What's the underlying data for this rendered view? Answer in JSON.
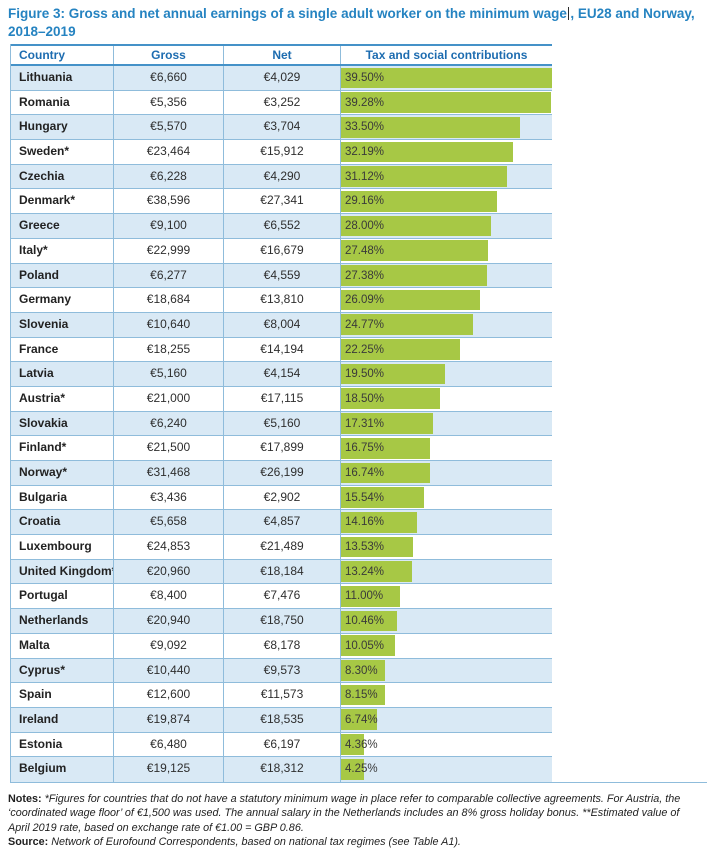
{
  "figure": {
    "title_part1": "Figure 3: Gross and net annual earnings of a single adult worker on the minimum wage",
    "title_part2": ", EU28 and Norway, 2018–2019",
    "accent_blue": "#2583c1",
    "header_blue": "#1d6cb0",
    "grid_blue": "#8fbcdb",
    "alt_row_blue": "#d9e9f5",
    "bar_green": "#a7c845"
  },
  "table": {
    "headers": {
      "country": "Country",
      "gross": "Gross",
      "net": "Net",
      "tax": "Tax and social contributions"
    }
  },
  "chart_data": {
    "type": "table",
    "title": "Figure 3: Gross and net annual earnings of a single adult worker on the minimum wage, EU28 and Norway, 2018–2019",
    "columns": [
      "Country",
      "Gross",
      "Net",
      "Tax and social contributions"
    ],
    "bar_column": "Tax and social contributions",
    "bar_unit": "%",
    "bar_scale_max": 39.5,
    "currency": "EUR",
    "rows": [
      {
        "country": "Lithuania",
        "gross_eur": 6660,
        "net_eur": 4029,
        "gross_label": "€6,660",
        "net_label": "€4,029",
        "tax_pct": 39.5,
        "tax_label": "39.50%"
      },
      {
        "country": "Romania",
        "gross_eur": 5356,
        "net_eur": 3252,
        "gross_label": "€5,356",
        "net_label": "€3,252",
        "tax_pct": 39.28,
        "tax_label": "39.28%"
      },
      {
        "country": "Hungary",
        "gross_eur": 5570,
        "net_eur": 3704,
        "gross_label": "€5,570",
        "net_label": "€3,704",
        "tax_pct": 33.5,
        "tax_label": "33.50%"
      },
      {
        "country": "Sweden*",
        "gross_eur": 23464,
        "net_eur": 15912,
        "gross_label": "€23,464",
        "net_label": "€15,912",
        "tax_pct": 32.19,
        "tax_label": "32.19%"
      },
      {
        "country": "Czechia",
        "gross_eur": 6228,
        "net_eur": 4290,
        "gross_label": "€6,228",
        "net_label": "€4,290",
        "tax_pct": 31.12,
        "tax_label": "31.12%"
      },
      {
        "country": "Denmark*",
        "gross_eur": 38596,
        "net_eur": 27341,
        "gross_label": "€38,596",
        "net_label": "€27,341",
        "tax_pct": 29.16,
        "tax_label": "29.16%"
      },
      {
        "country": "Greece",
        "gross_eur": 9100,
        "net_eur": 6552,
        "gross_label": "€9,100",
        "net_label": "€6,552",
        "tax_pct": 28.0,
        "tax_label": "28.00%"
      },
      {
        "country": "Italy*",
        "gross_eur": 22999,
        "net_eur": 16679,
        "gross_label": "€22,999",
        "net_label": "€16,679",
        "tax_pct": 27.48,
        "tax_label": "27.48%"
      },
      {
        "country": "Poland",
        "gross_eur": 6277,
        "net_eur": 4559,
        "gross_label": "€6,277",
        "net_label": "€4,559",
        "tax_pct": 27.38,
        "tax_label": "27.38%"
      },
      {
        "country": "Germany",
        "gross_eur": 18684,
        "net_eur": 13810,
        "gross_label": "€18,684",
        "net_label": "€13,810",
        "tax_pct": 26.09,
        "tax_label": "26.09%"
      },
      {
        "country": "Slovenia",
        "gross_eur": 10640,
        "net_eur": 8004,
        "gross_label": "€10,640",
        "net_label": "€8,004",
        "tax_pct": 24.77,
        "tax_label": "24.77%"
      },
      {
        "country": "France",
        "gross_eur": 18255,
        "net_eur": 14194,
        "gross_label": "€18,255",
        "net_label": "€14,194",
        "tax_pct": 22.25,
        "tax_label": "22.25%"
      },
      {
        "country": "Latvia",
        "gross_eur": 5160,
        "net_eur": 4154,
        "gross_label": "€5,160",
        "net_label": "€4,154",
        "tax_pct": 19.5,
        "tax_label": "19.50%"
      },
      {
        "country": "Austria*",
        "gross_eur": 21000,
        "net_eur": 17115,
        "gross_label": "€21,000",
        "net_label": "€17,115",
        "tax_pct": 18.5,
        "tax_label": "18.50%"
      },
      {
        "country": "Slovakia",
        "gross_eur": 6240,
        "net_eur": 5160,
        "gross_label": "€6,240",
        "net_label": "€5,160",
        "tax_pct": 17.31,
        "tax_label": "17.31%"
      },
      {
        "country": "Finland*",
        "gross_eur": 21500,
        "net_eur": 17899,
        "gross_label": "€21,500",
        "net_label": "€17,899",
        "tax_pct": 16.75,
        "tax_label": "16.75%"
      },
      {
        "country": "Norway*",
        "gross_eur": 31468,
        "net_eur": 26199,
        "gross_label": "€31,468",
        "net_label": "€26,199",
        "tax_pct": 16.74,
        "tax_label": "16.74%"
      },
      {
        "country": "Bulgaria",
        "gross_eur": 3436,
        "net_eur": 2902,
        "gross_label": "€3,436",
        "net_label": "€2,902",
        "tax_pct": 15.54,
        "tax_label": "15.54%"
      },
      {
        "country": "Croatia",
        "gross_eur": 5658,
        "net_eur": 4857,
        "gross_label": "€5,658",
        "net_label": "€4,857",
        "tax_pct": 14.16,
        "tax_label": "14.16%"
      },
      {
        "country": "Luxembourg",
        "gross_eur": 24853,
        "net_eur": 21489,
        "gross_label": "€24,853",
        "net_label": "€21,489",
        "tax_pct": 13.53,
        "tax_label": "13.53%"
      },
      {
        "country": "United Kingdom**",
        "gross_eur": 20960,
        "net_eur": 18184,
        "gross_label": "€20,960",
        "net_label": "€18,184",
        "tax_pct": 13.24,
        "tax_label": "13.24%"
      },
      {
        "country": "Portugal",
        "gross_eur": 8400,
        "net_eur": 7476,
        "gross_label": "€8,400",
        "net_label": "€7,476",
        "tax_pct": 11.0,
        "tax_label": "11.00%"
      },
      {
        "country": "Netherlands",
        "gross_eur": 20940,
        "net_eur": 18750,
        "gross_label": "€20,940",
        "net_label": "€18,750",
        "tax_pct": 10.46,
        "tax_label": "10.46%"
      },
      {
        "country": "Malta",
        "gross_eur": 9092,
        "net_eur": 8178,
        "gross_label": "€9,092",
        "net_label": "€8,178",
        "tax_pct": 10.05,
        "tax_label": "10.05%"
      },
      {
        "country": "Cyprus*",
        "gross_eur": 10440,
        "net_eur": 9573,
        "gross_label": "€10,440",
        "net_label": "€9,573",
        "tax_pct": 8.3,
        "tax_label": "8.30%"
      },
      {
        "country": "Spain",
        "gross_eur": 12600,
        "net_eur": 11573,
        "gross_label": "€12,600",
        "net_label": "€11,573",
        "tax_pct": 8.15,
        "tax_label": "8.15%"
      },
      {
        "country": "Ireland",
        "gross_eur": 19874,
        "net_eur": 18535,
        "gross_label": "€19,874",
        "net_label": "€18,535",
        "tax_pct": 6.74,
        "tax_label": "6.74%"
      },
      {
        "country": "Estonia",
        "gross_eur": 6480,
        "net_eur": 6197,
        "gross_label": "€6,480",
        "net_label": "€6,197",
        "tax_pct": 4.36,
        "tax_label": "4.36%"
      },
      {
        "country": "Belgium",
        "gross_eur": 19125,
        "net_eur": 18312,
        "gross_label": "€19,125",
        "net_label": "€18,312",
        "tax_pct": 4.25,
        "tax_label": "4.25%"
      }
    ]
  },
  "notes": {
    "label": "Notes:",
    "line1": "*Figures for countries that do not have a statutory minimum wage in place refer to comparable collective agreements. For Austria, the",
    "line2": "‘coordinated wage floor’ of €1,500 was used. The annual salary in the Netherlands includes an 8% gross holiday bonus. **Estimated value of",
    "line3": "April 2019 rate, based on exchange rate of €1.00 = GBP 0.86.",
    "source_label": "Source:",
    "source_text": "Network of Eurofound Correspondents, based on national tax regimes (see Table A1)."
  }
}
